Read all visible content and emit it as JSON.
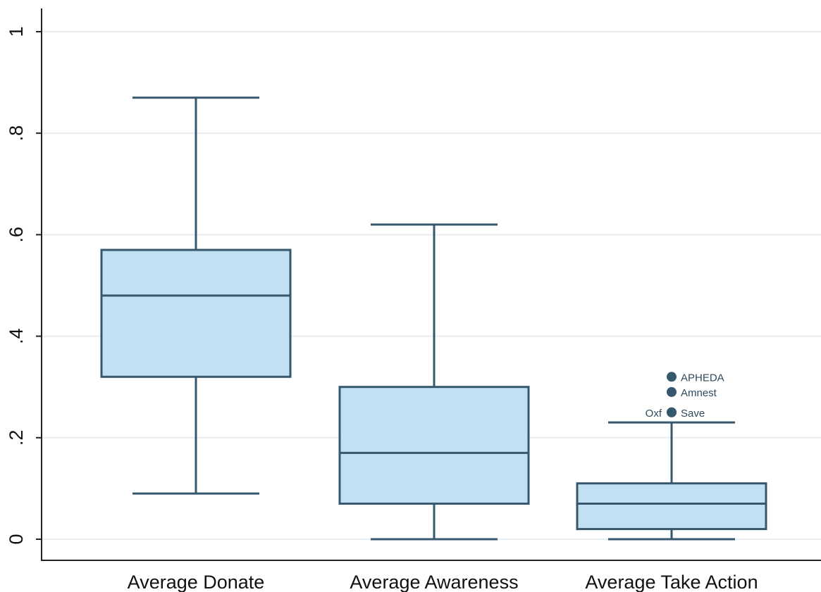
{
  "chart_data": {
    "type": "box",
    "title": "",
    "xlabel": "",
    "ylabel": "",
    "ylim": [
      0,
      1
    ],
    "yticks": [
      0,
      0.2,
      0.4,
      0.6,
      0.8,
      1
    ],
    "ytick_labels": [
      "0",
      ".2",
      ".4",
      ".6",
      ".8",
      "1"
    ],
    "grid": true,
    "categories": [
      "Average Donate",
      "Average Awareness",
      "Average Take Action"
    ],
    "boxes": [
      {
        "category": "Average Donate",
        "whisker_low": 0.09,
        "q1": 0.32,
        "median": 0.48,
        "q3": 0.57,
        "whisker_high": 0.87,
        "outliers": []
      },
      {
        "category": "Average Awareness",
        "whisker_low": 0.0,
        "q1": 0.07,
        "median": 0.17,
        "q3": 0.3,
        "whisker_high": 0.62,
        "outliers": []
      },
      {
        "category": "Average Take Action",
        "whisker_low": 0.0,
        "q1": 0.02,
        "median": 0.07,
        "q3": 0.11,
        "whisker_high": 0.23,
        "outliers": [
          {
            "value": 0.32,
            "label": "APHEDA",
            "label_side": "right"
          },
          {
            "value": 0.29,
            "label": "Amnest",
            "label_side": "right"
          },
          {
            "value": 0.25,
            "label": "Save",
            "label_side": "right"
          },
          {
            "value": 0.25,
            "label": "Oxf",
            "label_side": "left"
          }
        ]
      }
    ],
    "colors": {
      "box_fill": "#c3dff2",
      "box_stroke": "#36586e",
      "grid": "#e6eef2",
      "axis": "#222222",
      "outlier": "#36586e"
    }
  }
}
